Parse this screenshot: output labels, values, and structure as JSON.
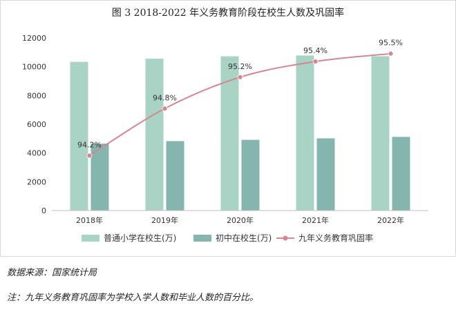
{
  "chart_data": {
    "type": "bar+line",
    "title": "图 3 2018-2022 年义务教育阶段在校生人数及巩固率",
    "categories": [
      "2018年",
      "2019年",
      "2020年",
      "2021年",
      "2022年"
    ],
    "series": [
      {
        "name": "普通小学在校生(万)",
        "type": "bar",
        "axis": "left",
        "values": [
          10339,
          10561,
          10725,
          10780,
          10732
        ]
      },
      {
        "name": "初中在校生(万)",
        "type": "bar",
        "axis": "left",
        "values": [
          4653,
          4827,
          4914,
          5018,
          5121
        ]
      },
      {
        "name": "九年义务教育巩固率",
        "type": "line",
        "axis": "right",
        "values": [
          94.2,
          94.8,
          95.2,
          95.4,
          95.5
        ],
        "labels": [
          "94.2%",
          "94.8%",
          "95.2%",
          "95.4%",
          "95.5%"
        ]
      }
    ],
    "yticks": [
      "0",
      "2000",
      "4000",
      "6000",
      "8000",
      "10000",
      "12000"
    ],
    "ylim": [
      0,
      12000
    ],
    "y2lim": [
      93.5,
      95.7
    ],
    "legend_position": "bottom",
    "grid": false,
    "colors": {
      "primary": "#a9d3c5",
      "junior": "#84b5ae",
      "rate": "#d5868f"
    }
  },
  "source_note": "数据来源：国家统计局",
  "footnote": "注：九年义务教育巩固率为学校入学人数和毕业人数的百分比。"
}
